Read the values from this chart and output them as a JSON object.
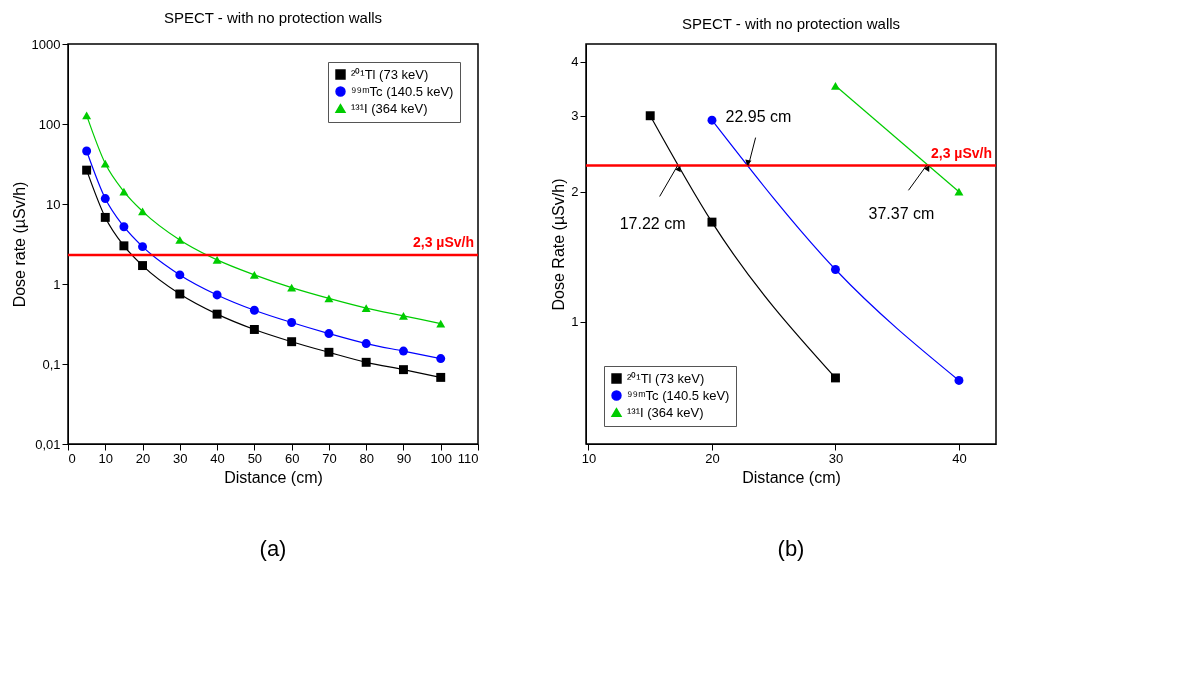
{
  "chart_data": [
    {
      "type": "line",
      "title": "SPECT - with no protection walls",
      "xlabel": "Distance (cm)",
      "ylabel": "Dose rate (µSv/h)",
      "log": "y",
      "grid": false,
      "legend": "top right",
      "line_style": "solid",
      "x": [
        5,
        10,
        15,
        20,
        30,
        40,
        50,
        60,
        70,
        80,
        90,
        100
      ],
      "xlim": [
        0,
        110
      ],
      "xticks": [
        0,
        10,
        20,
        30,
        40,
        50,
        60,
        70,
        80,
        90,
        100,
        110
      ],
      "ylim": [
        0.01,
        1000
      ],
      "yticks": [
        {
          "value": 0.01,
          "label": "0,01"
        },
        {
          "value": 0.1,
          "label": "0,1"
        },
        1,
        10,
        100,
        1000
      ],
      "series": [
        {
          "name": "²⁰¹Tl (73 keV)",
          "color": "#000000",
          "marker": "square",
          "values": [
            26.5,
            6.8,
            3.0,
            1.7,
            0.75,
            0.42,
            0.27,
            0.19,
            0.14,
            0.105,
            0.085,
            0.068
          ]
        },
        {
          "name": "⁹⁹ᵐTc (140.5 keV)",
          "color": "#0000ff",
          "marker": "circle",
          "values": [
            46,
            11.7,
            5.2,
            2.93,
            1.3,
            0.73,
            0.47,
            0.33,
            0.24,
            0.18,
            0.145,
            0.117
          ]
        },
        {
          "name": "¹³¹I (364 keV)",
          "color": "#00cc00",
          "marker": "triangle",
          "values": [
            128,
            32,
            14.3,
            8.1,
            3.55,
            2.0,
            1.3,
            0.9,
            0.66,
            0.5,
            0.4,
            0.32
          ]
        }
      ],
      "ref_lines": [
        {
          "axis": "y",
          "value": 2.3,
          "label": "2,3 µSv/h",
          "color": "#ff0000"
        }
      ],
      "annotations": [
        "(a)"
      ]
    },
    {
      "type": "line",
      "title": "SPECT - with no protection walls",
      "xlabel": "Distance (cm)",
      "ylabel": "Dose Rate (µSv/h)",
      "log": "y",
      "grid": false,
      "legend": "bottom left",
      "line_style": "solid",
      "xlim": [
        9.8,
        43
      ],
      "xticks": [
        10,
        20,
        30,
        40
      ],
      "ylim": [
        0.52,
        4.4
      ],
      "yticks": [
        1,
        2,
        3,
        4
      ],
      "series": [
        {
          "name": "²⁰¹Tl (73 keV)",
          "color": "#000000",
          "marker": "square",
          "x": [
            15,
            20,
            30
          ],
          "values": [
            3.0,
            1.7,
            0.74
          ]
        },
        {
          "name": "⁹⁹ᵐTc (140.5 keV)",
          "color": "#0000ff",
          "marker": "circle",
          "x": [
            20,
            30,
            40
          ],
          "values": [
            2.93,
            1.32,
            0.73
          ]
        },
        {
          "name": "¹³¹I (364 keV)",
          "color": "#00cc00",
          "marker": "triangle",
          "x": [
            30,
            40
          ],
          "values": [
            3.52,
            2.0
          ]
        }
      ],
      "ref_lines": [
        {
          "axis": "y",
          "value": 2.3,
          "label": "2,3 µSv/h",
          "color": "#ff0000"
        }
      ],
      "annotations": [
        {
          "text": "17.22 cm",
          "x": 17.22,
          "y": 2.3
        },
        {
          "text": "22.95 cm",
          "x": 22.95,
          "y": 2.3
        },
        {
          "text": "37.37 cm",
          "x": 37.37,
          "y": 2.3
        },
        "(b)"
      ]
    }
  ]
}
